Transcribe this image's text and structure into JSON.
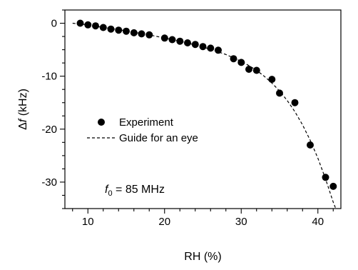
{
  "chart_data": {
    "type": "scatter",
    "xlabel": "RH (%)",
    "ylabel_prefix": "Δ",
    "ylabel_var": "f",
    "ylabel_suffix": " (kHz)",
    "xlim": [
      7,
      43
    ],
    "ylim": [
      -35,
      2.5
    ],
    "xticks": [
      10,
      20,
      30,
      40
    ],
    "yticks": [
      0,
      -10,
      -20,
      -30
    ],
    "minor_x_step": 2,
    "minor_y_step": 2.5,
    "grid": false,
    "legend_position": "center-left",
    "series": [
      {
        "name": "Experiment",
        "style": "filled-circle",
        "color": "#000000",
        "x": [
          9,
          10,
          11,
          12,
          13,
          14,
          15,
          16,
          17,
          18,
          20,
          21,
          22,
          23,
          24,
          25,
          26,
          27,
          29,
          30,
          31,
          32,
          34,
          35,
          37,
          39,
          41,
          42
        ],
        "y": [
          0,
          -0.3,
          -0.5,
          -0.8,
          -1.1,
          -1.3,
          -1.5,
          -1.8,
          -2.0,
          -2.2,
          -2.8,
          -3.1,
          -3.4,
          -3.7,
          -4.0,
          -4.4,
          -4.7,
          -5.1,
          -6.7,
          -7.4,
          -8.7,
          -8.9,
          -10.6,
          -13.2,
          -15.0,
          -23.0,
          -29.1,
          -30.8
        ]
      },
      {
        "name": "Guide for an eye",
        "style": "dashed-line",
        "color": "#000000",
        "x": [
          8,
          10,
          12,
          14,
          16,
          18,
          20,
          22,
          24,
          26,
          28,
          30,
          31,
          32,
          33,
          34,
          35,
          36,
          37,
          38,
          39,
          40,
          41,
          42,
          42.6
        ],
        "y": [
          0,
          -0.3,
          -0.8,
          -1.2,
          -1.7,
          -2.2,
          -2.8,
          -3.4,
          -4.1,
          -4.9,
          -5.9,
          -7.2,
          -8.0,
          -8.9,
          -10.0,
          -11.3,
          -12.8,
          -14.6,
          -16.7,
          -19.2,
          -22.1,
          -25.5,
          -29.4,
          -33.8,
          -36.0
        ]
      }
    ],
    "annotation": {
      "var": "f",
      "sub": "0",
      "text": " = 85 MHz"
    }
  }
}
